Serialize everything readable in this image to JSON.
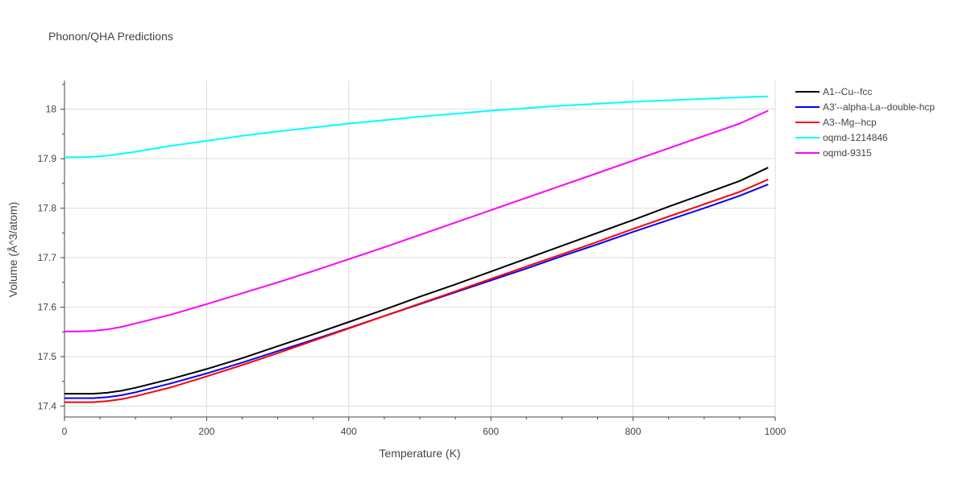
{
  "chart_data": {
    "type": "line",
    "title": "Phonon/QHA Predictions",
    "xlabel": "Temperature (K)",
    "ylabel": "Volume (Å^3/atom)",
    "xlim": [
      0,
      1000
    ],
    "ylim": [
      17.378,
      18.058
    ],
    "xticks": [
      0,
      200,
      400,
      600,
      800,
      1000
    ],
    "yticks": [
      17.4,
      17.5,
      17.6,
      17.7,
      17.8,
      17.9,
      18
    ],
    "grid": true,
    "legend_position": "top-right outside",
    "x": [
      0,
      20,
      40,
      60,
      80,
      100,
      150,
      200,
      250,
      300,
      350,
      400,
      450,
      500,
      550,
      600,
      650,
      700,
      750,
      800,
      850,
      900,
      950,
      990
    ],
    "series": [
      {
        "name": "A1--Cu--fcc",
        "color": "#000000",
        "values": [
          17.425,
          17.425,
          17.425,
          17.427,
          17.431,
          17.437,
          17.455,
          17.475,
          17.497,
          17.521,
          17.545,
          17.57,
          17.595,
          17.621,
          17.646,
          17.672,
          17.698,
          17.724,
          17.75,
          17.776,
          17.803,
          17.829,
          17.855,
          17.882
        ]
      },
      {
        "name": "A3'--alpha-La--double-hcp",
        "color": "#0000ff",
        "values": [
          17.416,
          17.416,
          17.416,
          17.418,
          17.422,
          17.428,
          17.446,
          17.466,
          17.488,
          17.511,
          17.534,
          17.558,
          17.582,
          17.606,
          17.63,
          17.654,
          17.678,
          17.703,
          17.727,
          17.752,
          17.776,
          17.8,
          17.825,
          17.848
        ]
      },
      {
        "name": "A3--Mg--hcp",
        "color": "#ff0000",
        "values": [
          17.408,
          17.408,
          17.408,
          17.41,
          17.414,
          17.42,
          17.438,
          17.46,
          17.483,
          17.507,
          17.532,
          17.557,
          17.582,
          17.607,
          17.632,
          17.657,
          17.682,
          17.707,
          17.732,
          17.758,
          17.783,
          17.808,
          17.833,
          17.858
        ]
      },
      {
        "name": "oqmd-1214846",
        "color": "#00ffff",
        "values": [
          17.903,
          17.903,
          17.904,
          17.906,
          17.91,
          17.914,
          17.926,
          17.936,
          17.946,
          17.955,
          17.963,
          17.971,
          17.978,
          17.985,
          17.991,
          17.997,
          18.002,
          18.007,
          18.011,
          18.015,
          18.018,
          18.021,
          18.024,
          18.026
        ]
      },
      {
        "name": "oqmd-9315",
        "color": "#ff00ff",
        "values": [
          17.551,
          17.551,
          17.552,
          17.555,
          17.56,
          17.567,
          17.585,
          17.606,
          17.628,
          17.65,
          17.673,
          17.697,
          17.721,
          17.746,
          17.771,
          17.796,
          17.821,
          17.846,
          17.871,
          17.896,
          17.921,
          17.946,
          17.971,
          17.997
        ]
      }
    ]
  }
}
